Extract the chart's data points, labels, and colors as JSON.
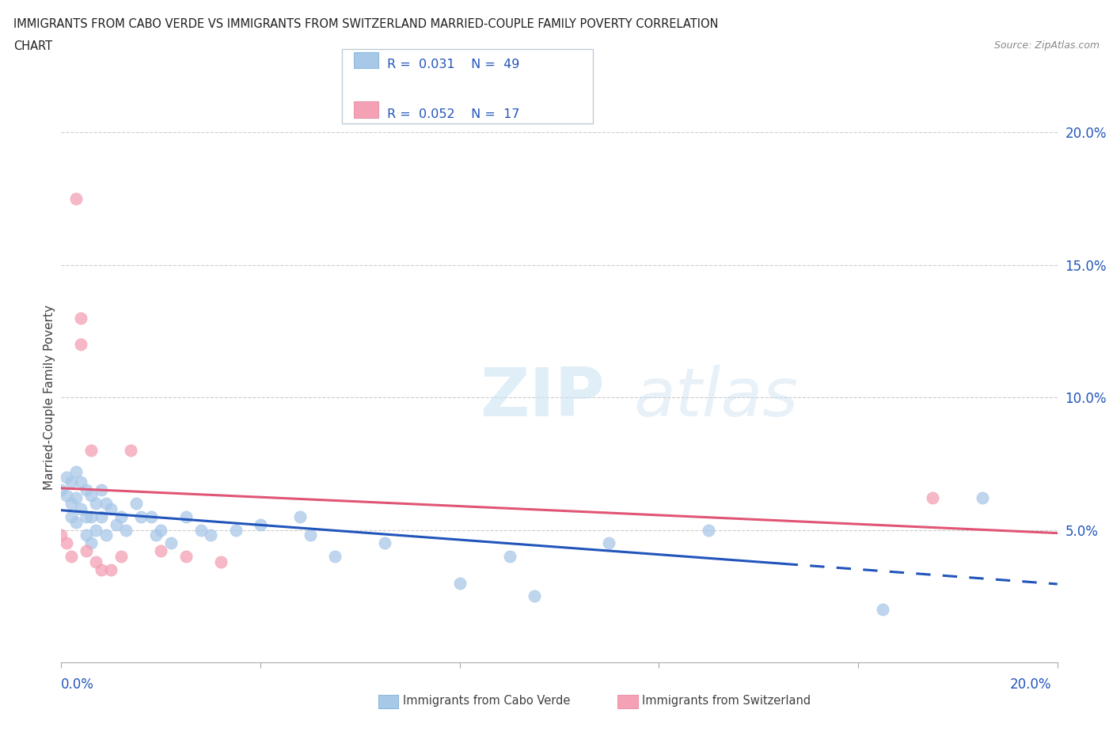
{
  "title_line1": "IMMIGRANTS FROM CABO VERDE VS IMMIGRANTS FROM SWITZERLAND MARRIED-COUPLE FAMILY POVERTY CORRELATION",
  "title_line2": "CHART",
  "source_text": "Source: ZipAtlas.com",
  "ylabel": "Married-Couple Family Poverty",
  "xlim": [
    0.0,
    0.2
  ],
  "ylim": [
    0.0,
    0.2
  ],
  "cabo_color": "#a8c8e8",
  "swiss_color": "#f4a0b5",
  "cabo_line_color": "#2255bb",
  "swiss_line_color": "#e05575",
  "cabo_x": [
    0.0,
    0.001,
    0.001,
    0.002,
    0.002,
    0.002,
    0.003,
    0.003,
    0.003,
    0.004,
    0.004,
    0.005,
    0.005,
    0.005,
    0.006,
    0.006,
    0.006,
    0.007,
    0.007,
    0.008,
    0.008,
    0.009,
    0.009,
    0.01,
    0.011,
    0.012,
    0.013,
    0.015,
    0.016,
    0.018,
    0.019,
    0.02,
    0.022,
    0.025,
    0.028,
    0.03,
    0.035,
    0.04,
    0.048,
    0.05,
    0.055,
    0.065,
    0.08,
    0.09,
    0.095,
    0.11,
    0.13,
    0.165,
    0.185
  ],
  "cabo_y": [
    0.065,
    0.07,
    0.063,
    0.068,
    0.06,
    0.055,
    0.072,
    0.062,
    0.053,
    0.068,
    0.058,
    0.065,
    0.055,
    0.048,
    0.063,
    0.055,
    0.045,
    0.06,
    0.05,
    0.065,
    0.055,
    0.06,
    0.048,
    0.058,
    0.052,
    0.055,
    0.05,
    0.06,
    0.055,
    0.055,
    0.048,
    0.05,
    0.045,
    0.055,
    0.05,
    0.048,
    0.05,
    0.052,
    0.055,
    0.048,
    0.04,
    0.045,
    0.03,
    0.04,
    0.025,
    0.045,
    0.05,
    0.02,
    0.062
  ],
  "swiss_x": [
    0.0,
    0.001,
    0.002,
    0.003,
    0.004,
    0.004,
    0.005,
    0.006,
    0.007,
    0.008,
    0.01,
    0.012,
    0.014,
    0.02,
    0.025,
    0.032,
    0.175
  ],
  "swiss_y": [
    0.048,
    0.045,
    0.04,
    0.175,
    0.13,
    0.12,
    0.042,
    0.08,
    0.038,
    0.035,
    0.035,
    0.04,
    0.08,
    0.042,
    0.04,
    0.038,
    0.062
  ]
}
